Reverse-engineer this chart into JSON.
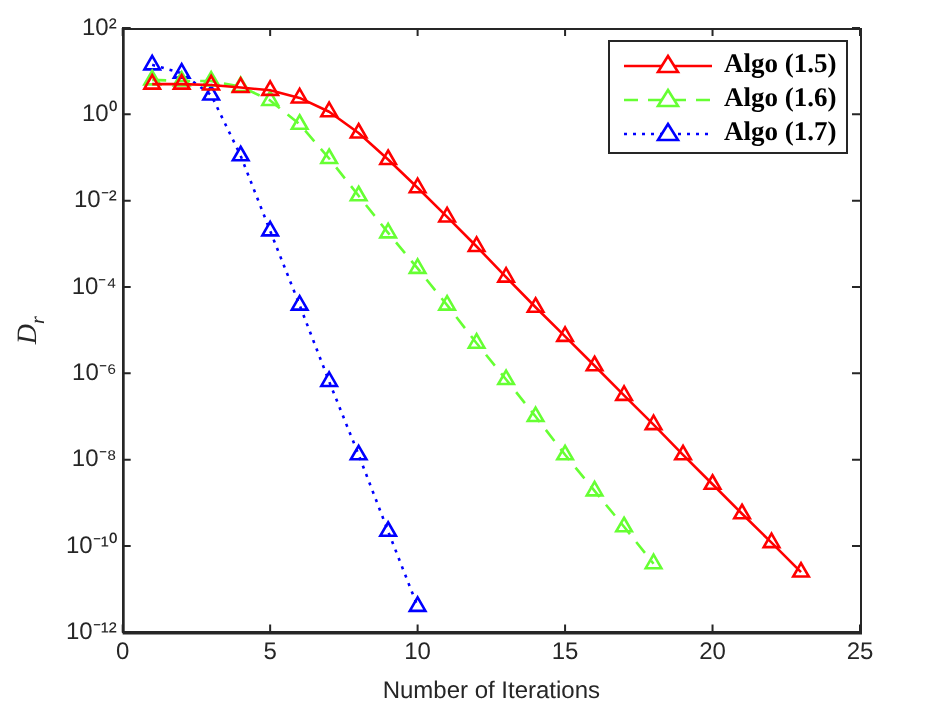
{
  "chart_data": {
    "type": "line",
    "xlabel": "Number of Iterations",
    "ylabel": "D$_{r}$",
    "log": "y",
    "grid": false,
    "legend": "top right",
    "marker": "triangle",
    "xlim": [
      0,
      25
    ],
    "xticks": [
      0,
      5,
      10,
      15,
      20,
      25
    ],
    "ylim": [
      1e-12,
      100
    ],
    "yticks": [
      {
        "value": 100,
        "label": "10²"
      },
      {
        "value": 1,
        "label": "10⁰"
      },
      {
        "value": 0.01,
        "label": "10⁻²"
      },
      {
        "value": 0.0001,
        "label": "10⁻⁴"
      },
      {
        "value": 1e-06,
        "label": "10⁻⁶"
      },
      {
        "value": 1e-08,
        "label": "10⁻⁸"
      },
      {
        "value": 1e-10,
        "label": "10⁻¹⁰"
      },
      {
        "value": 1e-12,
        "label": "10⁻¹²"
      }
    ],
    "series": [
      {
        "name": "Algo (1.5)",
        "color": "#ff0000",
        "line_style": "solid",
        "x": [
          1,
          2,
          3,
          4,
          5,
          6,
          7,
          8,
          9,
          10,
          11,
          12,
          13,
          14,
          15,
          16,
          17,
          18,
          19,
          20,
          21,
          22,
          23
        ],
        "values": [
          5,
          5,
          4.8,
          4.2,
          3.6,
          2.4,
          1.15,
          0.37,
          0.09,
          0.02,
          0.0042,
          0.00087,
          0.00017,
          3.4e-05,
          7.2e-06,
          1.5e-06,
          3.1e-07,
          6.5e-08,
          1.3e-08,
          2.7e-09,
          5.6e-10,
          1.2e-10,
          2.5e-11
        ]
      },
      {
        "name": "Algo (1.6)",
        "color": "#66ff33",
        "line_style": "dashed",
        "x": [
          1,
          2,
          3,
          4,
          5,
          6,
          7,
          8,
          9,
          10,
          11,
          12,
          13,
          14,
          15,
          16,
          17,
          18
        ],
        "values": [
          6.3,
          5.9,
          5.9,
          4.4,
          2.1,
          0.59,
          0.095,
          0.013,
          0.0018,
          0.00027,
          3.8e-05,
          5e-06,
          7.2e-07,
          1e-07,
          1.3e-08,
          1.9e-09,
          2.8e-10,
          3.9e-11
        ]
      },
      {
        "name": "Algo (1.7)",
        "color": "#0000ff",
        "line_style": "dotted",
        "x": [
          1,
          2,
          3,
          4,
          5,
          6,
          7,
          8,
          9,
          10
        ],
        "values": [
          14,
          9,
          2.8,
          0.11,
          0.002,
          3.8e-05,
          6.5e-07,
          1.3e-08,
          2.2e-10,
          4e-12
        ]
      }
    ]
  }
}
